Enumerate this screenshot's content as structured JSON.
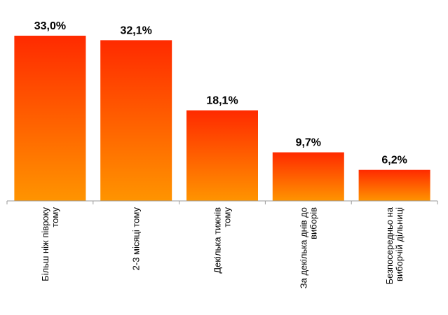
{
  "chart_data": {
    "type": "bar",
    "categories": [
      [
        "Більш ніж півроку",
        "тому"
      ],
      [
        "2-3 місяці тому"
      ],
      [
        "Декілька тижнів",
        "тому"
      ],
      [
        "За декілька днів до",
        "виборів"
      ],
      [
        "Безпосередньо на",
        "виборчій дільниці"
      ]
    ],
    "values": [
      33.0,
      32.1,
      18.1,
      9.7,
      6.2
    ],
    "value_labels": [
      "33,0%",
      "32,1%",
      "18,1%",
      "9,7%",
      "6,2%"
    ],
    "title": "",
    "xlabel": "",
    "ylabel": "",
    "ylim": [
      0,
      33.0
    ],
    "grid": false,
    "legend": "none",
    "category_label_orientation": "vertical",
    "colors": {
      "bar_top": "#ff2a00",
      "bar_bottom": "#ff9400",
      "axis": "#9a9a9a",
      "text": "#000000"
    }
  }
}
